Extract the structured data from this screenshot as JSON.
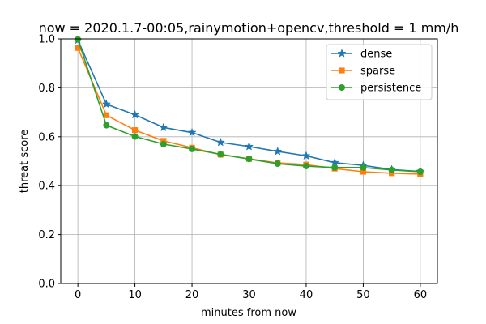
{
  "chart_data": {
    "type": "line",
    "title": "now = 2020.1.7-00:05,rainymotion+opencv,threshold = 1 mm/h",
    "xlabel": "minutes from now",
    "ylabel": "threat score",
    "x": [
      0,
      5,
      10,
      15,
      20,
      25,
      30,
      35,
      40,
      45,
      50,
      55,
      60
    ],
    "xlim": [
      -3,
      63
    ],
    "ylim": [
      0,
      1
    ],
    "xticks": [
      "0",
      "10",
      "20",
      "30",
      "40",
      "50",
      "60"
    ],
    "yticks": [
      "0.0",
      "0.2",
      "0.4",
      "0.6",
      "0.8",
      "1.0"
    ],
    "grid": true,
    "legend_position": "top-right",
    "series": [
      {
        "name": "dense",
        "color": "#1f77b4",
        "marker": "star",
        "values": [
          0.995,
          0.733,
          0.69,
          0.638,
          0.617,
          0.577,
          0.56,
          0.54,
          0.522,
          0.494,
          0.483,
          0.466,
          0.458
        ]
      },
      {
        "name": "sparse",
        "color": "#ff7f0e",
        "marker": "square",
        "values": [
          0.963,
          0.688,
          0.627,
          0.583,
          0.555,
          0.527,
          0.51,
          0.493,
          0.486,
          0.47,
          0.457,
          0.451,
          0.447
        ]
      },
      {
        "name": "persistence",
        "color": "#2ca02c",
        "marker": "circle",
        "values": [
          0.998,
          0.647,
          0.601,
          0.57,
          0.55,
          0.528,
          0.509,
          0.49,
          0.48,
          0.474,
          0.474,
          0.464,
          0.457
        ]
      }
    ]
  }
}
